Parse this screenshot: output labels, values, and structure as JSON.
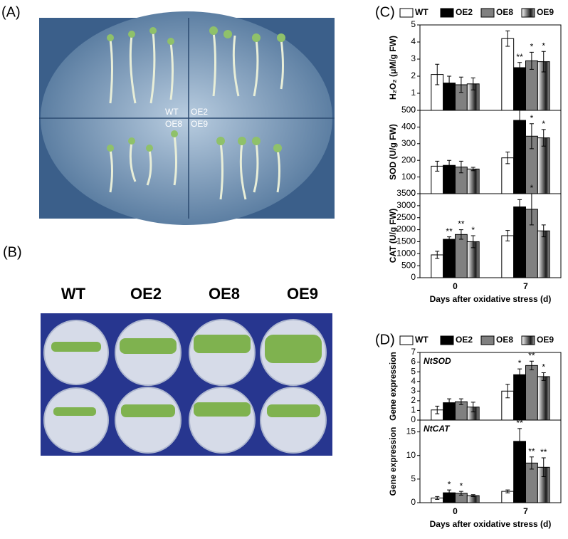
{
  "panel_labels": [
    "(A)",
    "(B)",
    "(C)",
    "(D)"
  ],
  "photo_a_labels": [
    "WT",
    "OE2",
    "OE8",
    "OE9"
  ],
  "photo_b_labels": [
    "WT",
    "OE2",
    "OE8",
    "OE9"
  ],
  "chart_data": [
    {
      "type": "bar",
      "ylabel": "H₂O₂ (μM/g FW)",
      "legend": "top",
      "ylim": [
        0,
        5
      ],
      "yticks": [
        0,
        1,
        2,
        3,
        4,
        5
      ],
      "series": [
        {
          "name": "WT",
          "color": "#ffffff",
          "values": [
            2.1,
            4.2
          ],
          "errors": [
            0.6,
            0.45
          ],
          "significance": [
            null,
            null
          ]
        },
        {
          "name": "OE2",
          "color": "#000000",
          "values": [
            1.6,
            2.5
          ],
          "errors": [
            0.4,
            0.3
          ],
          "significance": [
            null,
            "**"
          ]
        },
        {
          "name": "OE8",
          "color": "#808080",
          "values": [
            1.5,
            2.9
          ],
          "errors": [
            0.45,
            0.5
          ],
          "significance": [
            null,
            "*"
          ]
        },
        {
          "name": "OE9",
          "color": "#707070",
          "fill_style": "gradient",
          "values": [
            1.55,
            2.85
          ],
          "errors": [
            0.35,
            0.6
          ],
          "significance": [
            null,
            "*"
          ]
        }
      ]
    },
    {
      "type": "bar",
      "ylabel": "SOD (U/g FW)",
      "ylim": [
        0,
        500
      ],
      "yticks": [
        0,
        100,
        200,
        300,
        400,
        500
      ],
      "series": [
        {
          "color": "#ffffff",
          "values": [
            165,
            215
          ],
          "errors": [
            30,
            35
          ],
          "significance": [
            null,
            null
          ]
        },
        {
          "color": "#000000",
          "values": [
            170,
            440
          ],
          "errors": [
            30,
            60
          ],
          "significance": [
            null,
            "**"
          ]
        },
        {
          "color": "#808080",
          "values": [
            160,
            345
          ],
          "errors": [
            35,
            75
          ],
          "significance": [
            null,
            "*"
          ]
        },
        {
          "color": "#707070",
          "fill_style": "gradient",
          "values": [
            148,
            335
          ],
          "errors": [
            10,
            50
          ],
          "significance": [
            null,
            "*"
          ]
        }
      ]
    },
    {
      "type": "bar",
      "ylabel": "CAT (U/g FW)",
      "xlabel": "Days after oxidative stress (d)",
      "categories": [
        "0",
        "7"
      ],
      "ylim": [
        0,
        3500
      ],
      "yticks": [
        0,
        500,
        1000,
        1500,
        2000,
        2500,
        3000,
        3500
      ],
      "series": [
        {
          "color": "#ffffff",
          "values": [
            950,
            1750
          ],
          "errors": [
            150,
            220
          ],
          "significance": [
            null,
            null
          ]
        },
        {
          "color": "#000000",
          "values": [
            1600,
            2950
          ],
          "errors": [
            100,
            300
          ],
          "significance": [
            "**",
            "**"
          ]
        },
        {
          "color": "#808080",
          "values": [
            1800,
            2850
          ],
          "errors": [
            200,
            650
          ],
          "significance": [
            "**",
            "*"
          ]
        },
        {
          "color": "#707070",
          "fill_style": "gradient",
          "values": [
            1500,
            1950
          ],
          "errors": [
            250,
            250
          ],
          "significance": [
            "*",
            null
          ]
        }
      ]
    },
    {
      "type": "bar",
      "ylabel": "Gene expression",
      "annotation": "NtSOD",
      "legend": "top",
      "ylim": [
        0,
        7
      ],
      "yticks": [
        0,
        1,
        2,
        3,
        4,
        5,
        6,
        7
      ],
      "series": [
        {
          "name": "WT",
          "color": "#ffffff",
          "values": [
            1.05,
            3.0
          ],
          "errors": [
            0.4,
            0.7
          ],
          "significance": [
            null,
            null
          ]
        },
        {
          "name": "OE2",
          "color": "#000000",
          "values": [
            1.8,
            4.7
          ],
          "errors": [
            0.4,
            0.6
          ],
          "significance": [
            null,
            "*"
          ]
        },
        {
          "name": "OE8",
          "color": "#808080",
          "values": [
            1.9,
            5.65
          ],
          "errors": [
            0.3,
            0.45
          ],
          "significance": [
            null,
            "**"
          ]
        },
        {
          "name": "OE9",
          "color": "#707070",
          "fill_style": "gradient",
          "values": [
            1.35,
            4.5
          ],
          "errors": [
            0.5,
            0.4
          ],
          "significance": [
            null,
            "*"
          ]
        }
      ]
    },
    {
      "type": "bar",
      "ylabel": "Gene expression",
      "annotation": "NtCAT",
      "xlabel": "Days after  oxidative stress (d)",
      "categories": [
        "0",
        "7"
      ],
      "ylim": [
        0,
        17.5
      ],
      "yticks": [
        0,
        5,
        10,
        15
      ],
      "series": [
        {
          "color": "#ffffff",
          "values": [
            1.0,
            2.4
          ],
          "errors": [
            0.3,
            0.3
          ],
          "significance": [
            null,
            null
          ]
        },
        {
          "color": "#000000",
          "values": [
            2.1,
            13
          ],
          "errors": [
            0.6,
            2.7
          ],
          "significance": [
            "*",
            "**"
          ]
        },
        {
          "color": "#808080",
          "values": [
            2.0,
            8.4
          ],
          "errors": [
            0.4,
            1.3
          ],
          "significance": [
            "*",
            "**"
          ]
        },
        {
          "color": "#707070",
          "fill_style": "gradient",
          "values": [
            1.5,
            7.5
          ],
          "errors": [
            0.2,
            2.0
          ],
          "significance": [
            null,
            "**"
          ]
        }
      ]
    }
  ]
}
